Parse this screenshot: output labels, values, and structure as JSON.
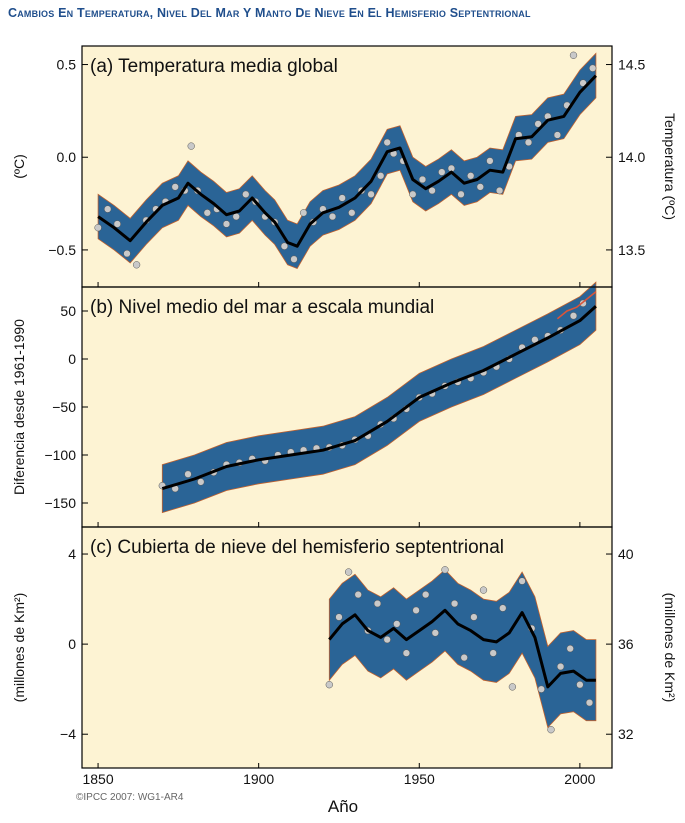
{
  "page_title": "Cambios En Temperatura, Nivel Del Mar Y Manto De Nieve En El Hemisferio Septentrional",
  "credit": "©IPCC  2007: WG1-AR4",
  "xlabel": "Año",
  "xticks": [
    1850,
    1900,
    1950,
    2000
  ],
  "xlim": [
    1845,
    2010
  ],
  "colors": {
    "panel_bg": "#fdf3d3",
    "band": "#2a6496",
    "band_edge": "#c0612e",
    "points": "#c9c9c9",
    "points_stroke": "#555555",
    "smooth_line": "#000000",
    "frame": "#000000",
    "title_text": "#1f4e8c",
    "recent_sea_level_line": "#d9553a"
  },
  "chart_data": [
    {
      "type": "line",
      "panel": "a",
      "title": "(a) Temperatura media global",
      "ylabel": "(ºC)",
      "ylim": [
        -0.7,
        0.6
      ],
      "yticks": [
        -0.5,
        0.0,
        0.5
      ],
      "ytick_labels": [
        "−0.5",
        "0.0",
        "0.5"
      ],
      "right_ylabel": "Temperatura (ºC)",
      "right_yticks": [
        13.5,
        14.0,
        14.5
      ],
      "right_ytick_labels": [
        "13.5",
        "14.0",
        "14.5"
      ],
      "right_offset": 14.0,
      "band_halfwidth": 0.12,
      "smooth": {
        "x": [
          1850,
          1855,
          1860,
          1865,
          1870,
          1875,
          1878,
          1882,
          1886,
          1890,
          1894,
          1898,
          1902,
          1905,
          1909,
          1912,
          1916,
          1920,
          1925,
          1930,
          1935,
          1940,
          1944,
          1948,
          1952,
          1956,
          1960,
          1964,
          1968,
          1972,
          1976,
          1980,
          1985,
          1990,
          1995,
          2000,
          2005
        ],
        "y": [
          -0.32,
          -0.38,
          -0.45,
          -0.35,
          -0.26,
          -0.22,
          -0.14,
          -0.2,
          -0.25,
          -0.31,
          -0.29,
          -0.22,
          -0.3,
          -0.35,
          -0.46,
          -0.48,
          -0.36,
          -0.3,
          -0.27,
          -0.22,
          -0.13,
          0.03,
          0.05,
          -0.12,
          -0.17,
          -0.13,
          -0.08,
          -0.14,
          -0.12,
          -0.07,
          -0.08,
          0.1,
          0.11,
          0.2,
          0.22,
          0.35,
          0.44
        ]
      },
      "annual": {
        "x": [
          1850,
          1853,
          1856,
          1859,
          1862,
          1865,
          1868,
          1871,
          1874,
          1877,
          1879,
          1881,
          1884,
          1887,
          1890,
          1893,
          1896,
          1899,
          1902,
          1905,
          1908,
          1911,
          1914,
          1917,
          1920,
          1923,
          1926,
          1929,
          1932,
          1935,
          1938,
          1940,
          1942,
          1945,
          1948,
          1951,
          1954,
          1957,
          1960,
          1963,
          1966,
          1969,
          1972,
          1975,
          1978,
          1981,
          1984,
          1987,
          1990,
          1993,
          1996,
          1998,
          2001,
          2004
        ],
        "y": [
          -0.38,
          -0.28,
          -0.36,
          -0.52,
          -0.58,
          -0.34,
          -0.28,
          -0.24,
          -0.16,
          -0.18,
          0.06,
          -0.18,
          -0.3,
          -0.28,
          -0.36,
          -0.32,
          -0.2,
          -0.24,
          -0.32,
          -0.35,
          -0.48,
          -0.55,
          -0.3,
          -0.35,
          -0.28,
          -0.32,
          -0.22,
          -0.3,
          -0.18,
          -0.2,
          -0.1,
          0.08,
          0.02,
          -0.02,
          -0.2,
          -0.12,
          -0.18,
          -0.08,
          -0.06,
          -0.2,
          -0.1,
          -0.16,
          -0.02,
          -0.18,
          -0.05,
          0.12,
          0.08,
          0.18,
          0.22,
          0.12,
          0.28,
          0.55,
          0.4,
          0.48
        ]
      }
    },
    {
      "type": "line",
      "panel": "b",
      "title": "(b) Nivel medio del mar a escala mundial",
      "ylabel": "Diferencia desde 1961-1990",
      "ylim": [
        -175,
        75
      ],
      "yticks": [
        -150,
        -100,
        -50,
        0,
        50
      ],
      "ytick_labels": [
        "−150",
        "−100",
        "−50",
        "0",
        "50"
      ],
      "band_halfwidth": 25,
      "smooth": {
        "x": [
          1870,
          1880,
          1890,
          1900,
          1910,
          1920,
          1930,
          1940,
          1950,
          1960,
          1970,
          1980,
          1990,
          2000,
          2005
        ],
        "y": [
          -135,
          -125,
          -112,
          -105,
          -100,
          -95,
          -85,
          -65,
          -40,
          -25,
          -12,
          5,
          22,
          40,
          55
        ]
      },
      "annual": {
        "x": [
          1870,
          1874,
          1878,
          1882,
          1886,
          1890,
          1894,
          1898,
          1902,
          1906,
          1910,
          1914,
          1918,
          1922,
          1926,
          1930,
          1934,
          1938,
          1942,
          1946,
          1950,
          1954,
          1958,
          1962,
          1966,
          1970,
          1974,
          1978,
          1982,
          1986,
          1990,
          1994,
          1998,
          2001
        ],
        "y": [
          -132,
          -135,
          -120,
          -128,
          -118,
          -110,
          -108,
          -104,
          -106,
          -100,
          -97,
          -95,
          -93,
          -92,
          -90,
          -84,
          -80,
          -68,
          -62,
          -52,
          -40,
          -36,
          -28,
          -24,
          -20,
          -14,
          -8,
          0,
          12,
          20,
          24,
          30,
          45,
          58
        ]
      },
      "recent_line": {
        "x": [
          1993,
          1996,
          1999,
          2002,
          2005
        ],
        "y": [
          42,
          50,
          54,
          62,
          70
        ]
      }
    },
    {
      "type": "line",
      "panel": "c",
      "title": "(c) Cubierta de nieve del hemisferio septentrional",
      "ylabel": "(millones de Km²)",
      "ylim": [
        -5.5,
        5.2
      ],
      "yticks": [
        -4,
        0,
        4
      ],
      "ytick_labels": [
        "−4",
        "0",
        "4"
      ],
      "right_ylabel": "(millones de Km²)",
      "right_yticks": [
        32,
        36,
        40
      ],
      "right_ytick_labels": [
        "32",
        "36",
        "40"
      ],
      "right_offset": 36.0,
      "band_halfwidth": 1.8,
      "smooth": {
        "x": [
          1922,
          1926,
          1930,
          1934,
          1938,
          1942,
          1946,
          1950,
          1954,
          1958,
          1962,
          1966,
          1970,
          1974,
          1978,
          1982,
          1986,
          1990,
          1994,
          1998,
          2002,
          2005
        ],
        "y": [
          0.2,
          0.9,
          1.3,
          0.6,
          0.3,
          0.7,
          0.2,
          0.6,
          1.0,
          1.5,
          0.9,
          0.6,
          0.2,
          0.1,
          0.5,
          1.4,
          0.3,
          -1.9,
          -1.3,
          -1.2,
          -1.6,
          -1.6
        ]
      },
      "annual": {
        "x": [
          1922,
          1925,
          1928,
          1931,
          1934,
          1937,
          1940,
          1943,
          1946,
          1949,
          1952,
          1955,
          1958,
          1961,
          1964,
          1967,
          1970,
          1973,
          1976,
          1979,
          1982,
          1985,
          1988,
          1991,
          1994,
          1997,
          2000,
          2003
        ],
        "y": [
          -1.8,
          1.2,
          3.2,
          2.2,
          0.6,
          1.8,
          0.2,
          0.9,
          -0.4,
          1.5,
          2.2,
          0.5,
          3.3,
          1.8,
          -0.6,
          1.2,
          2.4,
          -0.4,
          1.6,
          -1.9,
          2.8,
          0.7,
          -2.0,
          -3.8,
          -1.0,
          -0.2,
          -1.8,
          -2.6
        ]
      }
    }
  ]
}
